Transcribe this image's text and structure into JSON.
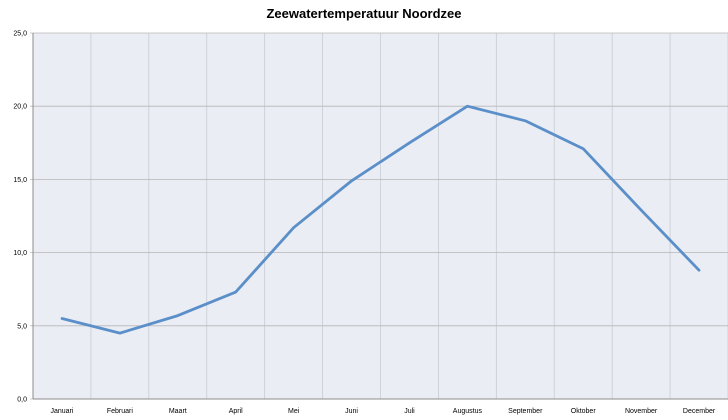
{
  "chart_data": {
    "type": "line",
    "title": "Zeewatertemperatuur Noordzee",
    "xlabel": "",
    "ylabel": "",
    "categories": [
      "Januari",
      "Februari",
      "Maart",
      "April",
      "Mei",
      "Juni",
      "Juli",
      "Augustus",
      "September",
      "Oktober",
      "November",
      "December"
    ],
    "series": [
      {
        "values": [
          5.5,
          4.5,
          5.7,
          7.3,
          11.7,
          14.9,
          17.5,
          20.0,
          19.0,
          17.1,
          12.9,
          8.8
        ]
      }
    ],
    "ylim": [
      0,
      25
    ],
    "yticks": [
      "0,0",
      "5,0",
      "10,0",
      "15,0",
      "20,0",
      "25,0"
    ],
    "grid": true,
    "legend": "none",
    "colors": {
      "plot_bg": "#eaedf4",
      "line": "#5b8fc9",
      "grid": "#b7b7b7"
    }
  }
}
